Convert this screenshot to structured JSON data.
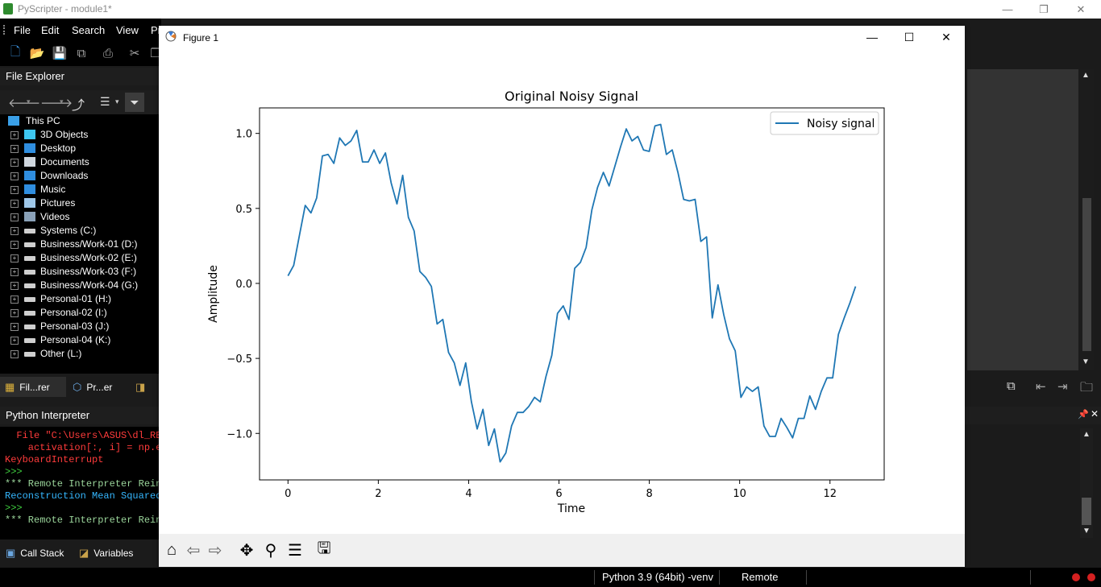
{
  "app": {
    "title": "PyScripter - module1*",
    "controls": {
      "minimize": "—",
      "restore": "❐",
      "close": "✕"
    }
  },
  "menubar": {
    "items": [
      "File",
      "Edit",
      "Search",
      "View",
      "Pr"
    ]
  },
  "file_explorer": {
    "title": "File Explorer",
    "root": "This PC",
    "items": [
      {
        "label": "3D Objects",
        "icon": "3d-objects-icon"
      },
      {
        "label": "Desktop",
        "icon": "desktop-icon"
      },
      {
        "label": "Documents",
        "icon": "documents-icon"
      },
      {
        "label": "Downloads",
        "icon": "downloads-icon"
      },
      {
        "label": "Music",
        "icon": "music-icon"
      },
      {
        "label": "Pictures",
        "icon": "pictures-icon"
      },
      {
        "label": "Videos",
        "icon": "videos-icon"
      },
      {
        "label": "Systems (C:)",
        "icon": "drive-icon"
      },
      {
        "label": "Business/Work-01 (D:)",
        "icon": "drive-icon"
      },
      {
        "label": "Business/Work-02 (E:)",
        "icon": "drive-icon"
      },
      {
        "label": "Business/Work-03 (F:)",
        "icon": "drive-icon"
      },
      {
        "label": "Business/Work-04 (G:)",
        "icon": "drive-icon"
      },
      {
        "label": "Personal-01 (H:)",
        "icon": "drive-icon"
      },
      {
        "label": "Personal-02 (I:)",
        "icon": "drive-icon"
      },
      {
        "label": "Personal-03 (J:)",
        "icon": "drive-icon"
      },
      {
        "label": "Personal-04 (K:)",
        "icon": "drive-icon"
      },
      {
        "label": "Other (L:)",
        "icon": "drive-icon"
      }
    ],
    "tabs": [
      "Fil...rer",
      "Pr...er"
    ]
  },
  "interpreter": {
    "title": "Python Interpreter",
    "lines": [
      {
        "text": "  File \"C:\\Users\\ASUS\\dl_RB",
        "color": "#ff3b3b"
      },
      {
        "text": "    activation[:, i] = np.e",
        "color": "#ff3b3b"
      },
      {
        "text": "KeyboardInterrupt",
        "color": "#ff3b3b"
      },
      {
        "text": ">>>",
        "color": "#3fd13f"
      },
      {
        "text": "*** Remote Interpreter Rein",
        "color": "#9ad49a"
      },
      {
        "text": "Reconstruction Mean Squared",
        "color": "#35b7ff"
      },
      {
        "text": ">>>",
        "color": "#3fd13f"
      },
      {
        "text": "*** Remote Interpreter Rein",
        "color": "#9ad49a"
      }
    ]
  },
  "bottom_tabs": {
    "call_stack": "Call Stack",
    "variables": "Variables"
  },
  "statusbar": {
    "python": "Python 3.9 (64bit) -venv",
    "mode": "Remote"
  },
  "figure": {
    "title": "Figure 1",
    "controls": {
      "minimize": "—",
      "maximize": "☐",
      "close": "✕"
    },
    "toolbar_icons": [
      "home-icon",
      "back-icon",
      "forward-icon",
      "pan-icon",
      "zoom-icon",
      "configure-icon",
      "save-icon"
    ]
  },
  "chart_data": {
    "type": "line",
    "title": "Original Noisy Signal",
    "xlabel": "Time",
    "ylabel": "Amplitude",
    "xlim": [
      -0.63,
      13.2
    ],
    "ylim": [
      -1.31,
      1.17
    ],
    "xticks": [
      0,
      2,
      4,
      6,
      8,
      10,
      12
    ],
    "xtick_labels": [
      "0",
      "2",
      "4",
      "6",
      "8",
      "10",
      "12"
    ],
    "yticks": [
      -1.0,
      -0.5,
      0.0,
      0.5,
      1.0
    ],
    "ytick_labels": [
      "−1.0",
      "−0.5",
      "0.0",
      "0.5",
      "1.0"
    ],
    "legend_position": "top-right",
    "color": "#1f77b4",
    "series": [
      {
        "name": "Noisy signal",
        "x": [
          0.0,
          0.127,
          0.254,
          0.381,
          0.508,
          0.635,
          0.762,
          0.889,
          1.016,
          1.143,
          1.269,
          1.396,
          1.523,
          1.65,
          1.777,
          1.904,
          2.031,
          2.158,
          2.285,
          2.412,
          2.539,
          2.666,
          2.793,
          2.92,
          3.047,
          3.174,
          3.301,
          3.428,
          3.555,
          3.682,
          3.808,
          3.935,
          4.062,
          4.189,
          4.316,
          4.443,
          4.57,
          4.697,
          4.824,
          4.951,
          5.078,
          5.205,
          5.332,
          5.459,
          5.586,
          5.713,
          5.84,
          5.967,
          6.094,
          6.221,
          6.347,
          6.474,
          6.601,
          6.728,
          6.855,
          6.982,
          7.109,
          7.236,
          7.363,
          7.49,
          7.617,
          7.744,
          7.871,
          7.998,
          8.125,
          8.252,
          8.379,
          8.506,
          8.633,
          8.76,
          8.886,
          9.013,
          9.14,
          9.267,
          9.394,
          9.521,
          9.648,
          9.775,
          9.902,
          10.029,
          10.156,
          10.283,
          10.41,
          10.537,
          10.664,
          10.791,
          10.918,
          11.045,
          11.172,
          11.299,
          11.425,
          11.552,
          11.679,
          11.806,
          11.933,
          12.06,
          12.187,
          12.314,
          12.441,
          12.566
        ],
        "y": [
          0.05,
          0.12,
          0.32,
          0.52,
          0.47,
          0.57,
          0.85,
          0.86,
          0.8,
          0.97,
          0.92,
          0.95,
          1.02,
          0.81,
          0.81,
          0.89,
          0.8,
          0.87,
          0.67,
          0.53,
          0.72,
          0.44,
          0.35,
          0.08,
          0.04,
          -0.02,
          -0.27,
          -0.24,
          -0.46,
          -0.53,
          -0.68,
          -0.53,
          -0.79,
          -0.97,
          -0.84,
          -1.08,
          -0.97,
          -1.19,
          -1.13,
          -0.95,
          -0.86,
          -0.86,
          -0.82,
          -0.76,
          -0.79,
          -0.62,
          -0.48,
          -0.2,
          -0.15,
          -0.24,
          0.1,
          0.14,
          0.24,
          0.49,
          0.64,
          0.74,
          0.65,
          0.78,
          0.91,
          1.03,
          0.95,
          0.98,
          0.89,
          0.88,
          1.05,
          1.06,
          0.86,
          0.89,
          0.74,
          0.56,
          0.55,
          0.56,
          0.28,
          0.31,
          -0.23,
          -0.01,
          -0.21,
          -0.37,
          -0.45,
          -0.76,
          -0.69,
          -0.72,
          -0.69,
          -0.95,
          -1.02,
          -1.02,
          -0.9,
          -0.96,
          -1.03,
          -0.9,
          -0.9,
          -0.75,
          -0.84,
          -0.72,
          -0.63,
          -0.63,
          -0.34,
          -0.23,
          -0.13,
          -0.02
        ]
      }
    ]
  }
}
